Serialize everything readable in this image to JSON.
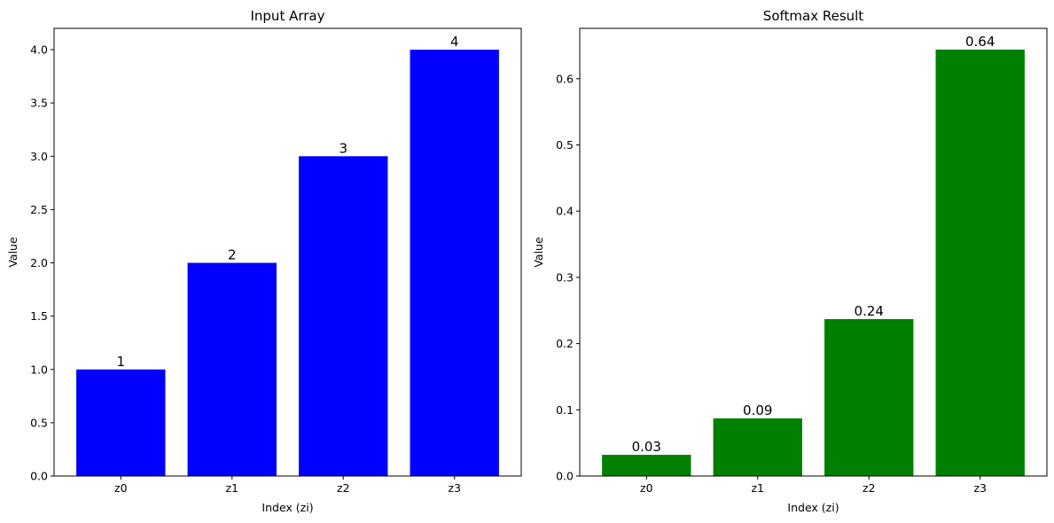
{
  "chart_data": [
    {
      "type": "bar",
      "title": "Input Array",
      "xlabel": "Index (zi)",
      "ylabel": "Value",
      "categories": [
        "z0",
        "z1",
        "z2",
        "z3"
      ],
      "values": [
        1,
        2,
        3,
        4
      ],
      "data_labels": [
        "1",
        "2",
        "3",
        "4"
      ],
      "ylim": [
        0,
        4.2
      ],
      "yticks": [
        0.0,
        0.5,
        1.0,
        1.5,
        2.0,
        2.5,
        3.0,
        3.5,
        4.0
      ],
      "ytick_labels": [
        "0.0",
        "0.5",
        "1.0",
        "1.5",
        "2.0",
        "2.5",
        "3.0",
        "3.5",
        "4.0"
      ],
      "color": "#0000ff",
      "grid": false
    },
    {
      "type": "bar",
      "title": "Softmax Result",
      "xlabel": "Index (zi)",
      "ylabel": "Value",
      "categories": [
        "z0",
        "z1",
        "z2",
        "z3"
      ],
      "values": [
        0.032,
        0.087,
        0.237,
        0.644
      ],
      "data_labels": [
        "0.03",
        "0.09",
        "0.24",
        "0.64"
      ],
      "ylim": [
        0,
        0.676
      ],
      "yticks": [
        0.0,
        0.1,
        0.2,
        0.3,
        0.4,
        0.5,
        0.6
      ],
      "ytick_labels": [
        "0.0",
        "0.1",
        "0.2",
        "0.3",
        "0.4",
        "0.5",
        "0.6"
      ],
      "color": "#008000",
      "grid": false
    }
  ]
}
